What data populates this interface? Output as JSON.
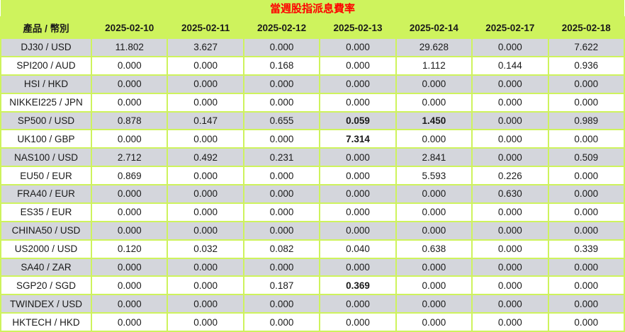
{
  "title": "當週股指派息費率",
  "colors": {
    "header_bg": "#CEF35D",
    "border": "#CEF35D",
    "title_text": "#FF0000",
    "body_text": "#1A1A1A",
    "row_alt_bg": "#D4D6DC",
    "row_bg": "#FFFFFF"
  },
  "chart_data": {
    "type": "table",
    "title": "當週股指派息費率",
    "product_header": "產品 / 幣別",
    "columns": [
      "2025-02-10",
      "2025-02-11",
      "2025-02-12",
      "2025-02-13",
      "2025-02-14",
      "2025-02-17",
      "2025-02-18"
    ],
    "rows": [
      {
        "product": "DJ30 / USD",
        "values": [
          "11.802",
          "3.627",
          "0.000",
          "0.000",
          "29.628",
          "0.000",
          "7.622"
        ]
      },
      {
        "product": "SPI200 / AUD",
        "values": [
          "0.000",
          "0.000",
          "0.168",
          "0.000",
          "1.112",
          "0.144",
          "0.936"
        ]
      },
      {
        "product": "HSI / HKD",
        "values": [
          "0.000",
          "0.000",
          "0.000",
          "0.000",
          "0.000",
          "0.000",
          "0.000"
        ]
      },
      {
        "product": "NIKKEI225 / JPN",
        "values": [
          "0.000",
          "0.000",
          "0.000",
          "0.000",
          "0.000",
          "0.000",
          "0.000"
        ]
      },
      {
        "product": "SP500 / USD",
        "values": [
          "0.878",
          "0.147",
          "0.655",
          "0.059",
          "1.450",
          "0.000",
          "0.989"
        ]
      },
      {
        "product": "UK100 / GBP",
        "values": [
          "0.000",
          "0.000",
          "0.000",
          "7.314",
          "0.000",
          "0.000",
          "0.000"
        ]
      },
      {
        "product": "NAS100 / USD",
        "values": [
          "2.712",
          "0.492",
          "0.231",
          "0.000",
          "2.841",
          "0.000",
          "0.509"
        ]
      },
      {
        "product": "EU50 / EUR",
        "values": [
          "0.869",
          "0.000",
          "0.000",
          "0.000",
          "5.593",
          "0.226",
          "0.000"
        ]
      },
      {
        "product": "FRA40 / EUR",
        "values": [
          "0.000",
          "0.000",
          "0.000",
          "0.000",
          "0.000",
          "0.630",
          "0.000"
        ]
      },
      {
        "product": "ES35 / EUR",
        "values": [
          "0.000",
          "0.000",
          "0.000",
          "0.000",
          "0.000",
          "0.000",
          "0.000"
        ]
      },
      {
        "product": "CHINA50 / USD",
        "values": [
          "0.000",
          "0.000",
          "0.000",
          "0.000",
          "0.000",
          "0.000",
          "0.000"
        ]
      },
      {
        "product": "US2000 / USD",
        "values": [
          "0.120",
          "0.032",
          "0.082",
          "0.040",
          "0.638",
          "0.000",
          "0.339"
        ]
      },
      {
        "product": "SA40 / ZAR",
        "values": [
          "0.000",
          "0.000",
          "0.000",
          "0.000",
          "0.000",
          "0.000",
          "0.000"
        ]
      },
      {
        "product": "SGP20 / SGD",
        "values": [
          "0.000",
          "0.000",
          "0.187",
          "0.369",
          "0.000",
          "0.000",
          "0.000"
        ]
      },
      {
        "product": "TWINDEX / USD",
        "values": [
          "0.000",
          "0.000",
          "0.000",
          "0.000",
          "0.000",
          "0.000",
          "0.000"
        ]
      },
      {
        "product": "HKTECH / HKD",
        "values": [
          "0.000",
          "0.000",
          "0.000",
          "0.000",
          "0.000",
          "0.000",
          "0.000"
        ]
      }
    ],
    "bold_cells": [
      {
        "row": 4,
        "col": 3
      },
      {
        "row": 4,
        "col": 4
      },
      {
        "row": 5,
        "col": 3
      },
      {
        "row": 13,
        "col": 3
      }
    ],
    "layout": {
      "grid": true,
      "alternating_rows": true,
      "columns_count": 8
    }
  }
}
